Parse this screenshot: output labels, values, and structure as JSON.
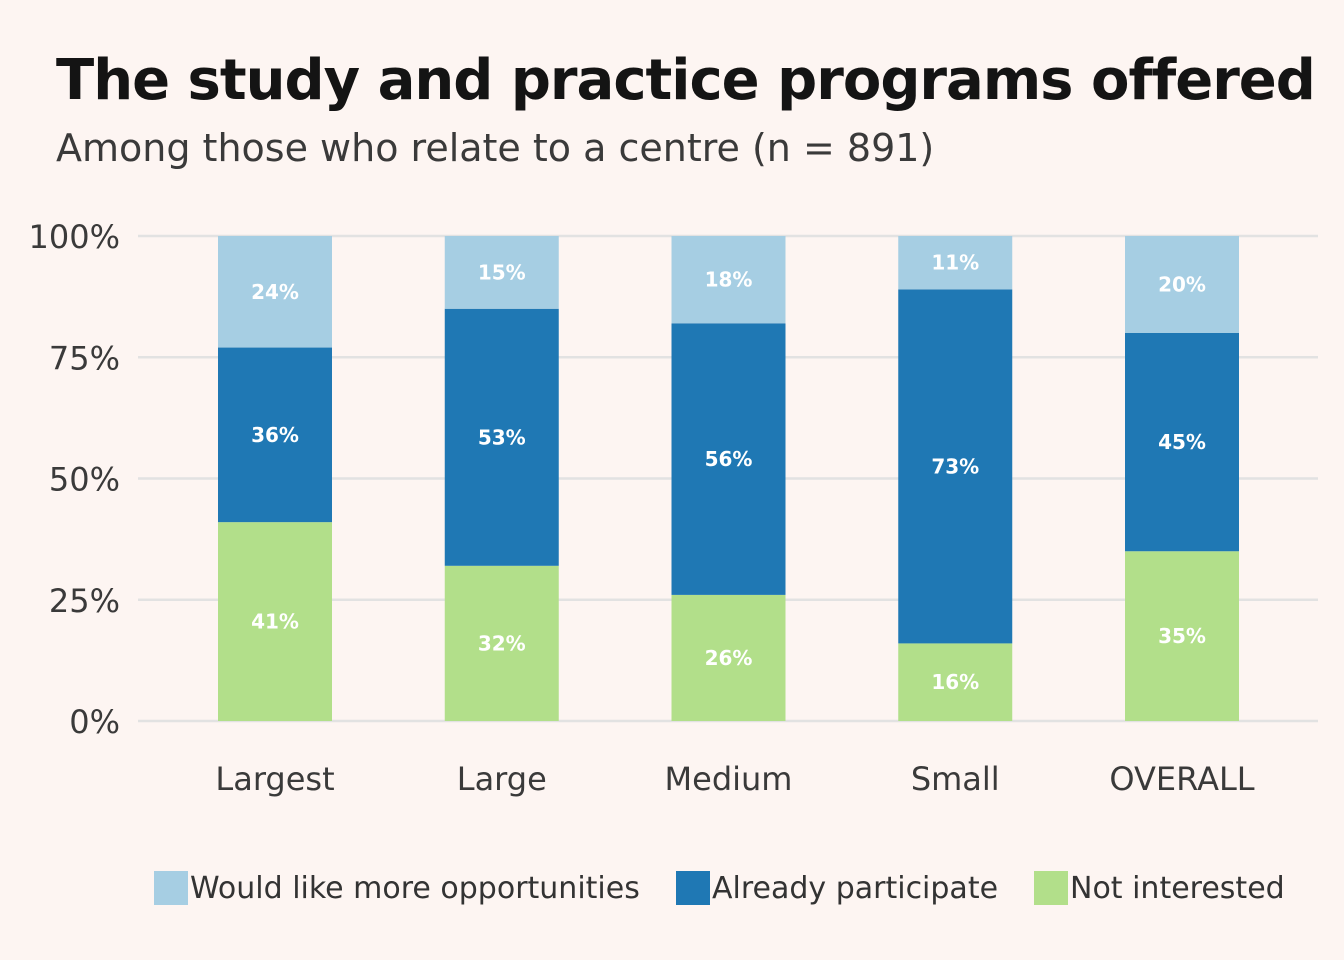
{
  "title": "The study and practice programs offered",
  "subtitle": "Among those who relate to a centre (n = 891)",
  "colors": {
    "background": "#fdf5f2",
    "grid": "#e2e2e2",
    "more_opportunities": "#a6cee3",
    "already_participate": "#1f78b4",
    "not_interested": "#b2df8a",
    "bar_label": "#ffffff"
  },
  "legend": {
    "items": [
      {
        "label": "Would like more opportunities",
        "color": "#a6cee3"
      },
      {
        "label": "Already participate",
        "color": "#1f78b4"
      },
      {
        "label": "Not interested",
        "color": "#b2df8a"
      }
    ]
  },
  "chart_data": {
    "type": "bar",
    "stacked": true,
    "categories": [
      "Largest",
      "Large",
      "Medium",
      "Small",
      "OVERALL"
    ],
    "series": [
      {
        "name": "Not interested",
        "values": [
          41,
          32,
          26,
          16,
          35
        ],
        "labels": [
          "41%",
          "32%",
          "26%",
          "16%",
          "35%"
        ],
        "color": "#b2df8a"
      },
      {
        "name": "Already participate",
        "values": [
          36,
          53,
          56,
          73,
          45
        ],
        "labels": [
          "36%",
          "53%",
          "56%",
          "73%",
          "45%"
        ],
        "color": "#1f78b4"
      },
      {
        "name": "Would like more opportunities",
        "values": [
          24,
          15,
          18,
          11,
          20
        ],
        "labels": [
          "24%",
          "15%",
          "18%",
          "11%",
          "20%"
        ],
        "color": "#a6cee3"
      }
    ],
    "ylim": [
      0,
      100
    ],
    "yticks": [
      0,
      25,
      50,
      75,
      100
    ],
    "ytick_labels": [
      "0%",
      "25%",
      "50%",
      "75%",
      "100%"
    ],
    "grid": true,
    "legend_position": "bottom"
  }
}
